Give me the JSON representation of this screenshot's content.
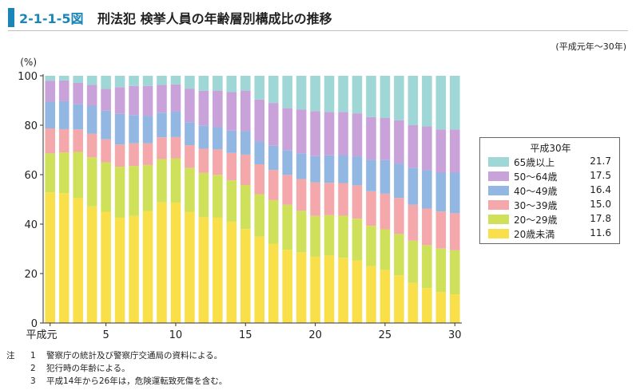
{
  "header": {
    "figure_number": "2-1-1-5図",
    "title": "刑法犯 検挙人員の年齢層別構成比の推移",
    "period": "(平成元年～30年)"
  },
  "chart_data": {
    "type": "bar",
    "stacked": true,
    "unit_label": "(%)",
    "ylim": [
      0,
      100
    ],
    "yticks": [
      0,
      20,
      40,
      60,
      80,
      100
    ],
    "x": [
      1,
      2,
      3,
      4,
      5,
      6,
      7,
      8,
      9,
      10,
      11,
      12,
      13,
      14,
      15,
      16,
      17,
      18,
      19,
      20,
      21,
      22,
      23,
      24,
      25,
      26,
      27,
      28,
      29,
      30
    ],
    "x_tick_labels": [
      {
        "x": 1,
        "label": "平成元"
      },
      {
        "x": 5,
        "label": "5"
      },
      {
        "x": 10,
        "label": "10"
      },
      {
        "x": 15,
        "label": "15"
      },
      {
        "x": 20,
        "label": "20"
      },
      {
        "x": 25,
        "label": "25"
      },
      {
        "x": 30,
        "label": "30"
      }
    ],
    "series": [
      {
        "name": "20歳未満",
        "color": "#f9e04b",
        "values": [
          52.8,
          52.5,
          50.5,
          47.2,
          45.0,
          42.6,
          43.3,
          45.3,
          48.8,
          48.7,
          45.0,
          42.8,
          42.6,
          41.0,
          38.0,
          34.9,
          32.1,
          29.6,
          28.6,
          26.8,
          27.3,
          26.4,
          25.3,
          23.0,
          21.4,
          19.3,
          16.2,
          14.1,
          12.5,
          11.6
        ]
      },
      {
        "name": "20～29歳",
        "color": "#cfe05a",
        "values": [
          15.8,
          16.5,
          18.7,
          19.8,
          20.0,
          20.6,
          20.2,
          18.6,
          17.5,
          17.9,
          17.7,
          17.9,
          17.3,
          16.7,
          17.8,
          17.2,
          17.6,
          18.2,
          16.8,
          16.5,
          16.3,
          17.0,
          16.9,
          16.3,
          16.5,
          16.7,
          17.1,
          17.4,
          17.6,
          17.8
        ]
      },
      {
        "name": "30～39歳",
        "color": "#f4a8ac",
        "values": [
          10.1,
          9.4,
          9.1,
          9.6,
          9.3,
          9.0,
          9.2,
          8.8,
          8.8,
          8.6,
          9.2,
          9.8,
          10.3,
          11.1,
          12.3,
          12.1,
          12.2,
          12.1,
          12.8,
          13.6,
          13.1,
          13.2,
          13.5,
          14.0,
          14.4,
          14.6,
          14.5,
          14.8,
          15.0,
          15.0
        ]
      },
      {
        "name": "40～49歳",
        "color": "#92b7e3",
        "values": [
          10.8,
          11.3,
          10.2,
          11.3,
          11.6,
          12.4,
          11.4,
          11.0,
          10.0,
          10.3,
          9.3,
          9.4,
          9.0,
          9.0,
          9.5,
          9.2,
          9.8,
          10.0,
          10.4,
          10.6,
          11.1,
          11.3,
          11.7,
          12.7,
          13.6,
          13.9,
          15.0,
          15.5,
          15.7,
          16.4
        ]
      },
      {
        "name": "50～64歳",
        "color": "#c8a2d8",
        "values": [
          8.5,
          8.4,
          8.6,
          8.4,
          8.8,
          10.8,
          11.8,
          12.2,
          11.2,
          11.0,
          13.6,
          14.0,
          14.8,
          15.6,
          16.4,
          17.0,
          17.3,
          17.0,
          17.8,
          18.2,
          17.6,
          17.4,
          17.4,
          17.3,
          17.0,
          17.5,
          17.2,
          17.7,
          17.5,
          17.5
        ]
      },
      {
        "name": "65歳以上",
        "color": "#9fd7d6",
        "values": [
          2.0,
          1.9,
          2.9,
          3.7,
          5.3,
          4.6,
          4.1,
          4.1,
          3.7,
          3.5,
          5.2,
          6.1,
          6.0,
          6.6,
          6.0,
          9.6,
          11.0,
          13.1,
          13.6,
          14.3,
          14.6,
          14.7,
          15.2,
          16.7,
          17.1,
          18.0,
          20.0,
          20.5,
          21.7,
          21.7
        ]
      }
    ],
    "legend": {
      "title": "平成30年",
      "placement": "right",
      "items": [
        {
          "label": "65歳以上",
          "value": "21.7",
          "color": "#9fd7d6"
        },
        {
          "label": "50～64歳",
          "value": "17.5",
          "color": "#c8a2d8"
        },
        {
          "label": "40～49歳",
          "value": "16.4",
          "color": "#92b7e3"
        },
        {
          "label": "30～39歳",
          "value": "15.0",
          "color": "#f4a8ac"
        },
        {
          "label": "20～29歳",
          "value": "17.8",
          "color": "#cfe05a"
        },
        {
          "label": "20歳未満",
          "value": "11.6",
          "color": "#f9e04b"
        }
      ]
    },
    "grid": false
  },
  "notes": [
    {
      "head": "注",
      "num": "1",
      "text": "警察庁の統計及び警察庁交通局の資料による。"
    },
    {
      "head": "",
      "num": "2",
      "text": "犯行時の年齢による。"
    },
    {
      "head": "",
      "num": "3",
      "text": "平成14年から26年は，危険運転致死傷を含む。"
    }
  ]
}
